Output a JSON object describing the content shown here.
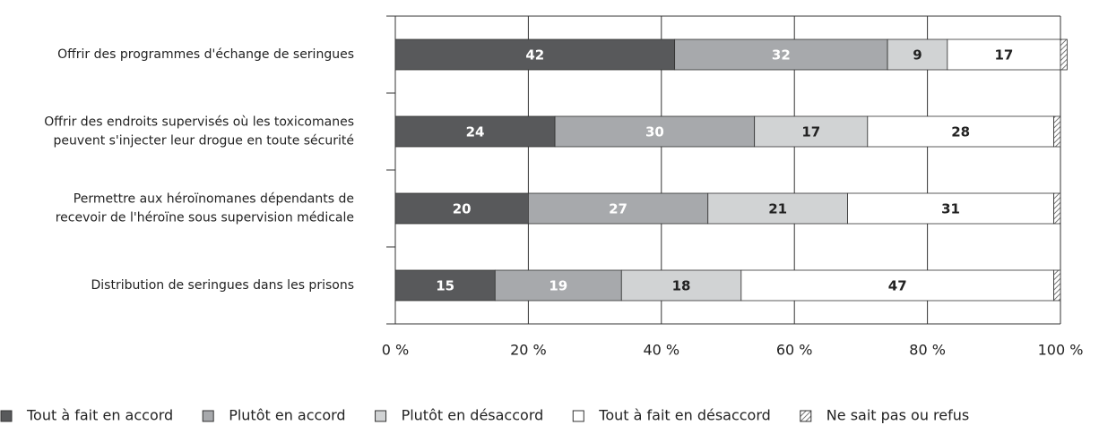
{
  "chart_data": {
    "type": "stacked-bar-horizontal",
    "categories": [
      [
        "Offrir des programmes d'échange de seringues"
      ],
      [
        "Offrir des endroits supervisés où les toxicomanes",
        "peuvent s'injecter leur drogue en toute sécurité"
      ],
      [
        "Permettre aux héroïnomanes dépendants de",
        "recevoir de l'héroïne sous supervision médicale"
      ],
      [
        "Distribution de seringues dans les prisons"
      ]
    ],
    "series": [
      {
        "name": "Tout à fait en accord",
        "color": "#58595b",
        "values": [
          42,
          24,
          20,
          15
        ]
      },
      {
        "name": "Plutôt en accord",
        "color": "#a7a9ac",
        "values": [
          32,
          30,
          27,
          19
        ]
      },
      {
        "name": "Plutôt en désaccord",
        "color": "#d1d3d4",
        "values": [
          9,
          17,
          21,
          18
        ]
      },
      {
        "name": "Tout à fait en désaccord",
        "color": "#ffffff",
        "values": [
          17,
          28,
          31,
          47
        ]
      },
      {
        "name": "Ne sait pas ou refus",
        "color": "hatch",
        "values": [
          1,
          1,
          1,
          1
        ]
      }
    ],
    "xlim": [
      0,
      100
    ],
    "xticks": [
      {
        "value": 0,
        "label": "0 %"
      },
      {
        "value": 20,
        "label": "20 %"
      },
      {
        "value": 40,
        "label": "40 %"
      },
      {
        "value": 60,
        "label": "60 %"
      },
      {
        "value": 80,
        "label": "80 %"
      },
      {
        "value": 100,
        "label": "100 %"
      }
    ],
    "grid": true,
    "legend": "bottom"
  }
}
